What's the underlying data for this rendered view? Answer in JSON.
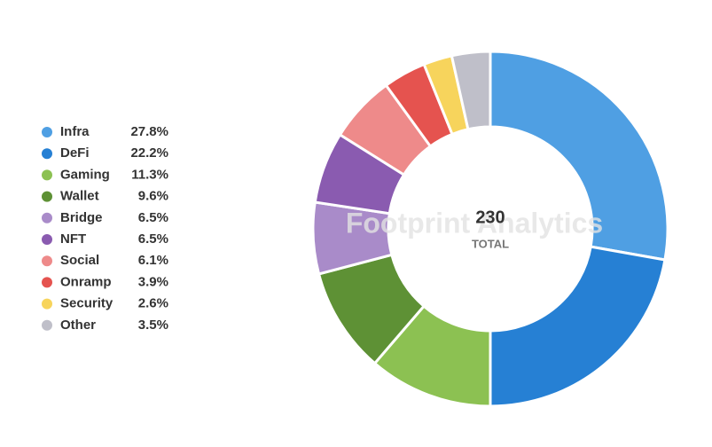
{
  "chart_data": {
    "type": "donut",
    "categories": [
      "Infra",
      "DeFi",
      "Gaming",
      "Wallet",
      "Bridge",
      "NFT",
      "Social",
      "Onramp",
      "Security",
      "Other"
    ],
    "values": [
      27.8,
      22.2,
      11.3,
      9.6,
      6.5,
      6.5,
      6.1,
      3.9,
      2.6,
      3.5
    ],
    "value_labels": [
      "27.8%",
      "22.2%",
      "11.3%",
      "9.6%",
      "6.5%",
      "6.5%",
      "6.1%",
      "3.9%",
      "2.6%",
      "3.5%"
    ],
    "colors": [
      "#4f9fe3",
      "#2680d4",
      "#8cc152",
      "#5e9135",
      "#a98bc9",
      "#8a5bb0",
      "#ee8a8a",
      "#e5534f",
      "#f7d45c",
      "#bfbfc9"
    ],
    "total": 230,
    "total_label": "TOTAL",
    "watermark": "Footprint Analytics"
  }
}
